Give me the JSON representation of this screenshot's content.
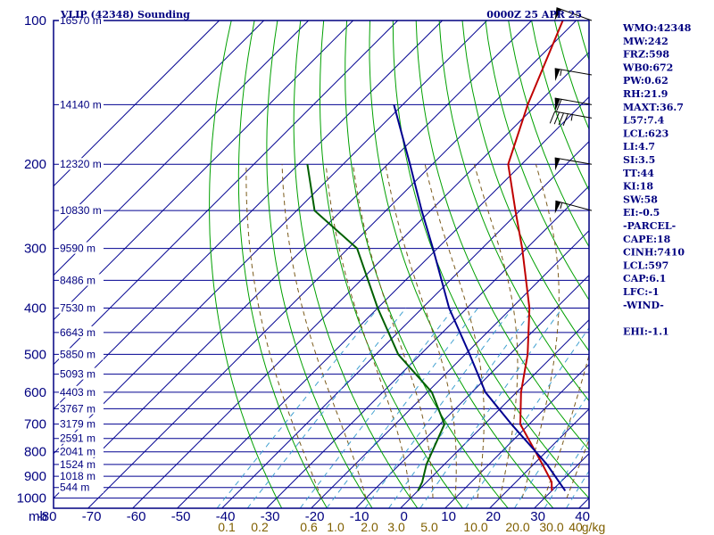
{
  "header": {
    "station": "VLIP (42348) Sounding",
    "time": "0000Z 25 APR 25"
  },
  "chart_data": {
    "type": "skew-t",
    "x_axis": {
      "unit_label": "mb",
      "ticks": [
        -80,
        -70,
        -60,
        -50,
        -40,
        -30,
        -20,
        -10,
        0,
        10,
        20,
        30,
        40
      ]
    },
    "y_axis": {
      "ticks": [
        100,
        200,
        300,
        400,
        500,
        600,
        700,
        800,
        900,
        1000
      ]
    },
    "mixing_ratio_labels": [
      "0.1",
      "0.2",
      "0.6",
      "1.0",
      "2.0",
      "3.0",
      "5.0",
      "10.0",
      "20.0",
      "30.0",
      "40",
      "g/kg"
    ],
    "height_labels": [
      {
        "p": 100,
        "label": "16570 m"
      },
      {
        "p": 150,
        "label": "14140 m"
      },
      {
        "p": 200,
        "label": "12320 m"
      },
      {
        "p": 250,
        "label": "10830 m"
      },
      {
        "p": 300,
        "label": "9590 m"
      },
      {
        "p": 350,
        "label": "8486 m"
      },
      {
        "p": 400,
        "label": "7530 m"
      },
      {
        "p": 450,
        "label": "6643 m"
      },
      {
        "p": 500,
        "label": "5850 m"
      },
      {
        "p": 550,
        "label": "5093 m"
      },
      {
        "p": 600,
        "label": "4403 m"
      },
      {
        "p": 650,
        "label": "3767 m"
      },
      {
        "p": 700,
        "label": "3179 m"
      },
      {
        "p": 750,
        "label": "2591 m"
      },
      {
        "p": 800,
        "label": "2041 m"
      },
      {
        "p": 850,
        "label": "1524 m"
      },
      {
        "p": 900,
        "label": "1018 m"
      },
      {
        "p": 950,
        "label": "544 m"
      }
    ],
    "series": [
      {
        "name": "temperature",
        "color": "#c00000",
        "points": [
          [
            965,
            30
          ],
          [
            925,
            28
          ],
          [
            850,
            22
          ],
          [
            700,
            8
          ],
          [
            600,
            1
          ],
          [
            500,
            -6
          ],
          [
            400,
            -16
          ],
          [
            300,
            -31
          ],
          [
            250,
            -41
          ],
          [
            200,
            -53
          ],
          [
            150,
            -62
          ],
          [
            100,
            -73
          ]
        ]
      },
      {
        "name": "dewpoint",
        "color": "#006000",
        "points": [
          [
            965,
            0
          ],
          [
            925,
            -1
          ],
          [
            850,
            -4
          ],
          [
            700,
            -9
          ],
          [
            600,
            -19
          ],
          [
            500,
            -35
          ],
          [
            400,
            -50
          ],
          [
            300,
            -68
          ],
          [
            250,
            -86
          ],
          [
            200,
            -98
          ]
        ]
      },
      {
        "name": "parcel",
        "color": "#000090",
        "points": [
          [
            965,
            33
          ],
          [
            850,
            23
          ],
          [
            700,
            6
          ],
          [
            600,
            -7
          ],
          [
            500,
            -19
          ],
          [
            400,
            -34
          ],
          [
            300,
            -51
          ],
          [
            250,
            -62
          ],
          [
            200,
            -75
          ],
          [
            150,
            -92
          ]
        ]
      }
    ],
    "wind_barbs": [
      {
        "p": 100,
        "dir": 290,
        "spd": 50
      },
      {
        "p": 130,
        "dir": 280,
        "spd": 55
      },
      {
        "p": 150,
        "dir": 280,
        "spd": 60
      },
      {
        "p": 160,
        "dir": 280,
        "spd": 45
      },
      {
        "p": 200,
        "dir": 280,
        "spd": 50
      },
      {
        "p": 250,
        "dir": 285,
        "spd": 55
      }
    ]
  },
  "indices": [
    "WMO:42348",
    "MW:242",
    "FRZ:598",
    "WB0:672",
    "PW:0.62",
    "RH:21.9",
    "MAXT:36.7",
    "L57:7.4",
    "LCL:623",
    "LI:4.7",
    "SI:3.5",
    "TT:44",
    "KI:18",
    "SW:58",
    "EI:-0.5",
    "-PARCEL-",
    "CAPE:18",
    "CINH:7410",
    "LCL:597",
    "CAP:6.1",
    "LFC:-1",
    "-WIND-",
    "",
    "EHI:-1.1"
  ],
  "colors": {
    "frame": "#000080",
    "isotherm": "#000090",
    "isobar": "#000090",
    "dry_adiabat": "#00a000",
    "moist_adiabat": "#7a5a1a",
    "mixing_ratio": "#40a0d0"
  }
}
